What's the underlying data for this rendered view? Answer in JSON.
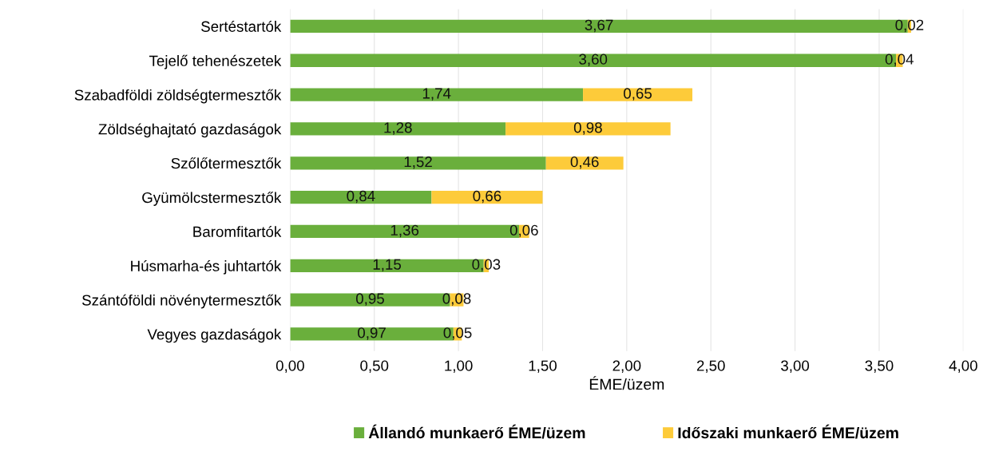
{
  "chart_data": {
    "type": "bar",
    "orientation": "horizontal",
    "stacked": true,
    "xlabel": "ÉME/üzem",
    "categories": [
      "Sertéstartók",
      "Tejelő tehenészetek",
      "Szabadföldi zöldségtermesztők",
      "Zöldséghajtató gazdaságok",
      "Szőlőtermesztők",
      "Gyümölcstermesztők",
      "Baromfitartók",
      "Húsmarha-és juhtartók",
      "Szántóföldi növénytermesztők",
      "Vegyes gazdaságok"
    ],
    "series": [
      {
        "name": "Állandó munkaerő ÉME/üzem",
        "color": "#6aaf3c",
        "values": [
          3.67,
          3.6,
          1.74,
          1.28,
          1.52,
          0.84,
          1.36,
          1.15,
          0.95,
          0.97
        ],
        "value_labels": [
          "3,67",
          "3,60",
          "1,74",
          "1,28",
          "1,52",
          "0,84",
          "1,36",
          "1,15",
          "0,95",
          "0,97"
        ]
      },
      {
        "name": "Időszaki munkaerő ÉME/üzem",
        "color": "#fdcb3a",
        "values": [
          0.02,
          0.04,
          0.65,
          0.98,
          0.46,
          0.66,
          0.06,
          0.03,
          0.08,
          0.05
        ],
        "value_labels": [
          "0,02",
          "0,04",
          "0,65",
          "0,98",
          "0,46",
          "0,66",
          "0,06",
          "0,03",
          "0,08",
          "0,05"
        ]
      }
    ],
    "xlim": [
      0,
      4
    ],
    "xticks": [
      {
        "value": 0,
        "label": "0,00"
      },
      {
        "value": 0.5,
        "label": "0,50"
      },
      {
        "value": 1,
        "label": "1,00"
      },
      {
        "value": 1.5,
        "label": "1,50"
      },
      {
        "value": 2,
        "label": "2,00"
      },
      {
        "value": 2.5,
        "label": "2,50"
      },
      {
        "value": 3,
        "label": "3,00"
      },
      {
        "value": 3.5,
        "label": "3,50"
      },
      {
        "value": 4,
        "label": "4,00"
      }
    ],
    "grid": "x",
    "legend": "bottom"
  }
}
